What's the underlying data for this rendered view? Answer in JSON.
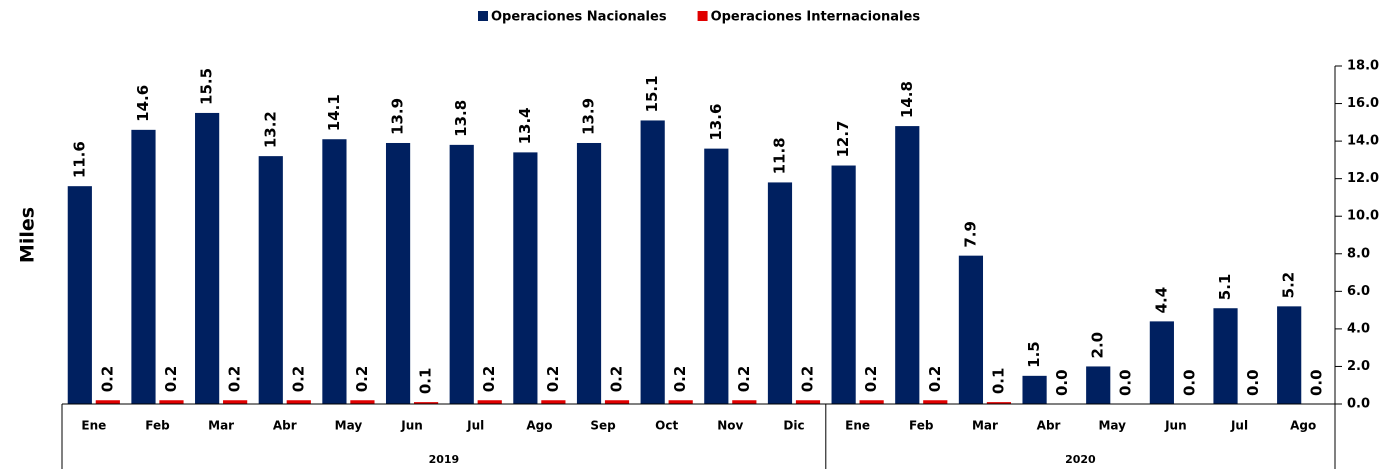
{
  "chart_data": {
    "type": "bar",
    "y_axis_label": "Miles",
    "groups": [
      {
        "name": "2019",
        "categories": [
          "Ene",
          "Feb",
          "Mar",
          "Abr",
          "May",
          "Jun",
          "Jul",
          "Ago",
          "Sep",
          "Oct",
          "Nov",
          "Dic"
        ]
      },
      {
        "name": "2020",
        "categories": [
          "Ene",
          "Feb",
          "Mar",
          "Abr",
          "May",
          "Jun",
          "Jul",
          "Ago"
        ]
      }
    ],
    "series": [
      {
        "name": "Operaciones Nacionales",
        "color": "#002060",
        "values": [
          11.6,
          14.6,
          15.5,
          13.2,
          14.1,
          13.9,
          13.8,
          13.4,
          13.9,
          15.1,
          13.6,
          11.8,
          12.7,
          14.8,
          7.9,
          1.5,
          2.0,
          4.4,
          5.1,
          5.2
        ],
        "value_labels": [
          "11.6",
          "14.6",
          "15.5",
          "13.2",
          "14.1",
          "13.9",
          "13.8",
          "13.4",
          "13.9",
          "15.1",
          "13.6",
          "11.8",
          "12.7",
          "14.8",
          "7.9",
          "1.5",
          "2.0",
          "4.4",
          "5.1",
          "5.2"
        ]
      },
      {
        "name": "Operaciones Internacionales",
        "color": "#e00000",
        "values": [
          0.2,
          0.2,
          0.2,
          0.2,
          0.2,
          0.1,
          0.2,
          0.2,
          0.2,
          0.2,
          0.2,
          0.2,
          0.2,
          0.2,
          0.1,
          0.0,
          0.0,
          0.0,
          0.0,
          0.0
        ],
        "value_labels": [
          "0.2",
          "0.2",
          "0.2",
          "0.2",
          "0.2",
          "0.1",
          "0.2",
          "0.2",
          "0.2",
          "0.2",
          "0.2",
          "0.2",
          "0.2",
          "0.2",
          "0.1",
          "0.0",
          "0.0",
          "0.0",
          "0.0",
          "0.0"
        ]
      }
    ],
    "ylim": [
      0,
      18
    ],
    "yticks": [
      {
        "value": 0,
        "label": "0.0"
      },
      {
        "value": 2,
        "label": "2.0"
      },
      {
        "value": 4,
        "label": "4.0"
      },
      {
        "value": 6,
        "label": "6.0"
      },
      {
        "value": 8,
        "label": "8.0"
      },
      {
        "value": 10,
        "label": "10.0"
      },
      {
        "value": 12,
        "label": "12.0"
      },
      {
        "value": 14,
        "label": "14.0"
      },
      {
        "value": 16,
        "label": "16.0"
      },
      {
        "value": 18,
        "label": "18.0"
      }
    ],
    "y_axis_side": "right",
    "legend": "top"
  }
}
